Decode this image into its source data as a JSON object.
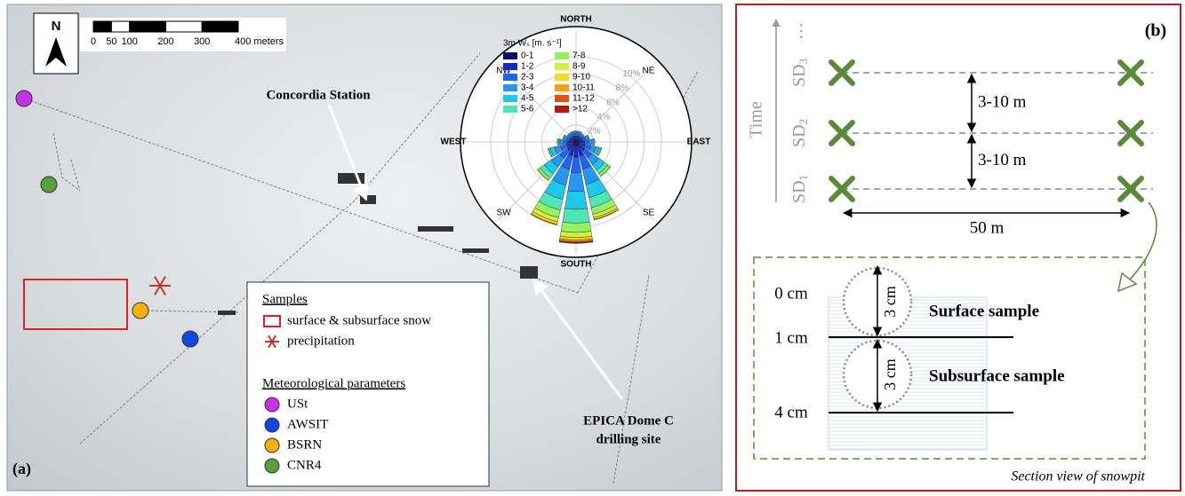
{
  "panel_a": {
    "label": "(a)",
    "north": "N",
    "scale_bar": {
      "ticks": [
        0,
        50,
        100,
        200,
        300,
        {
          "value": 400,
          "label": "400 meters"
        }
      ]
    },
    "sites": {
      "concordia": "Concordia Station",
      "epica": [
        "EPICA Dome C",
        "drilling site"
      ]
    },
    "legend": {
      "samples_title": "Samples",
      "samples": [
        "surface & subsurface snow",
        "precipitation"
      ],
      "met_title": "Meteorological parameters",
      "met": [
        {
          "name": "USt",
          "color": "#c832e6"
        },
        {
          "name": "AWSIT",
          "color": "#1446e6"
        },
        {
          "name": "BSRN",
          "color": "#f5b10a"
        },
        {
          "name": "CNR4",
          "color": "#5aa03c"
        }
      ]
    },
    "windrose": {
      "type": "windrose",
      "legend_title": "3m Wₛ [m. s⁻¹]",
      "directions": [
        "NORTH",
        "NE",
        "EAST",
        "SE",
        "SOUTH",
        "SW",
        "WEST",
        "NW"
      ],
      "rlim": [
        0,
        13
      ],
      "rticks": [
        {
          "value": 2,
          "label": "2%"
        },
        {
          "value": 4,
          "label": "4%"
        },
        {
          "value": 6,
          "label": "6%"
        },
        {
          "value": 8,
          "label": "8%"
        },
        {
          "value": 10,
          "label": "10%"
        }
      ],
      "classes": [
        {
          "name": "0-1",
          "color": "#0a0a6e"
        },
        {
          "name": "1-2",
          "color": "#1428c8"
        },
        {
          "name": "2-3",
          "color": "#1e64f0"
        },
        {
          "name": "3-4",
          "color": "#2896f0"
        },
        {
          "name": "4-5",
          "color": "#1ec8e6"
        },
        {
          "name": "5-6",
          "color": "#50e6b4"
        },
        {
          "name": "7-8",
          "color": "#96f064"
        },
        {
          "name": "8-9",
          "color": "#d2f03c"
        },
        {
          "name": "9-10",
          "color": "#f5dc1e"
        },
        {
          "name": "10-11",
          "color": "#f5a014"
        },
        {
          "name": "11-12",
          "color": "#e6500a"
        },
        {
          "name": ">12",
          "color": "#b41414"
        }
      ],
      "sectors": [
        [
          0.3,
          0.4,
          0.3,
          0.2,
          0.1,
          0,
          0,
          0,
          0,
          0,
          0,
          0
        ],
        [
          0.3,
          0.4,
          0.3,
          0.2,
          0.1,
          0,
          0,
          0,
          0,
          0,
          0,
          0
        ],
        [
          0.3,
          0.4,
          0.3,
          0.2,
          0,
          0,
          0,
          0,
          0,
          0,
          0,
          0
        ],
        [
          0.3,
          0.5,
          0.4,
          0.3,
          0.1,
          0,
          0,
          0,
          0,
          0,
          0,
          0
        ],
        [
          0.4,
          0.6,
          0.5,
          0.4,
          0.2,
          0.1,
          0,
          0,
          0,
          0,
          0,
          0
        ],
        [
          0.4,
          0.7,
          0.7,
          0.6,
          0.4,
          0.2,
          0.1,
          0,
          0,
          0,
          0,
          0
        ],
        [
          0.4,
          0.9,
          1,
          1,
          0.8,
          0.5,
          0.3,
          0.1,
          0,
          0,
          0,
          0
        ],
        [
          0.5,
          1.2,
          1.6,
          1.8,
          1.6,
          1.2,
          0.8,
          0.4,
          0.2,
          0.1,
          0,
          0
        ],
        [
          0.5,
          1.3,
          1.8,
          2.2,
          2.1,
          1.6,
          1.1,
          0.6,
          0.3,
          0.2,
          0.1,
          0.1
        ],
        [
          0.5,
          1.2,
          1.6,
          1.9,
          1.7,
          1.3,
          0.9,
          0.5,
          0.3,
          0.1,
          0,
          0
        ],
        [
          0.4,
          0.9,
          1.1,
          1.2,
          1,
          0.6,
          0.3,
          0.1,
          0,
          0,
          0,
          0
        ],
        [
          0.4,
          0.7,
          0.8,
          0.7,
          0.5,
          0.2,
          0.1,
          0,
          0,
          0,
          0,
          0
        ],
        [
          0.4,
          0.6,
          0.5,
          0.4,
          0.2,
          0.1,
          0,
          0,
          0,
          0,
          0,
          0
        ],
        [
          0.3,
          0.5,
          0.4,
          0.3,
          0.1,
          0,
          0,
          0,
          0,
          0,
          0,
          0
        ],
        [
          0.3,
          0.4,
          0.3,
          0.2,
          0.1,
          0,
          0,
          0,
          0,
          0,
          0,
          0
        ],
        [
          0.3,
          0.4,
          0.3,
          0.2,
          0.1,
          0,
          0,
          0,
          0,
          0,
          0,
          0
        ]
      ]
    }
  },
  "panel_b": {
    "label": "(b)",
    "time": "Time",
    "ellipsis": "…",
    "sd": [
      {
        "main": "SD",
        "sub": "1"
      },
      {
        "main": "SD",
        "sub": "2"
      },
      {
        "main": "SD",
        "sub": "3"
      }
    ],
    "spacing": [
      "3-10 m",
      "3-10 m"
    ],
    "width": "50 m",
    "depths": [
      "0 cm",
      "1 cm",
      "4 cm"
    ],
    "sample_size": [
      "3 cm",
      "3 cm"
    ],
    "samples": [
      "Surface sample",
      "Subsurface sample"
    ],
    "caption": "Section view of snowpit"
  }
}
